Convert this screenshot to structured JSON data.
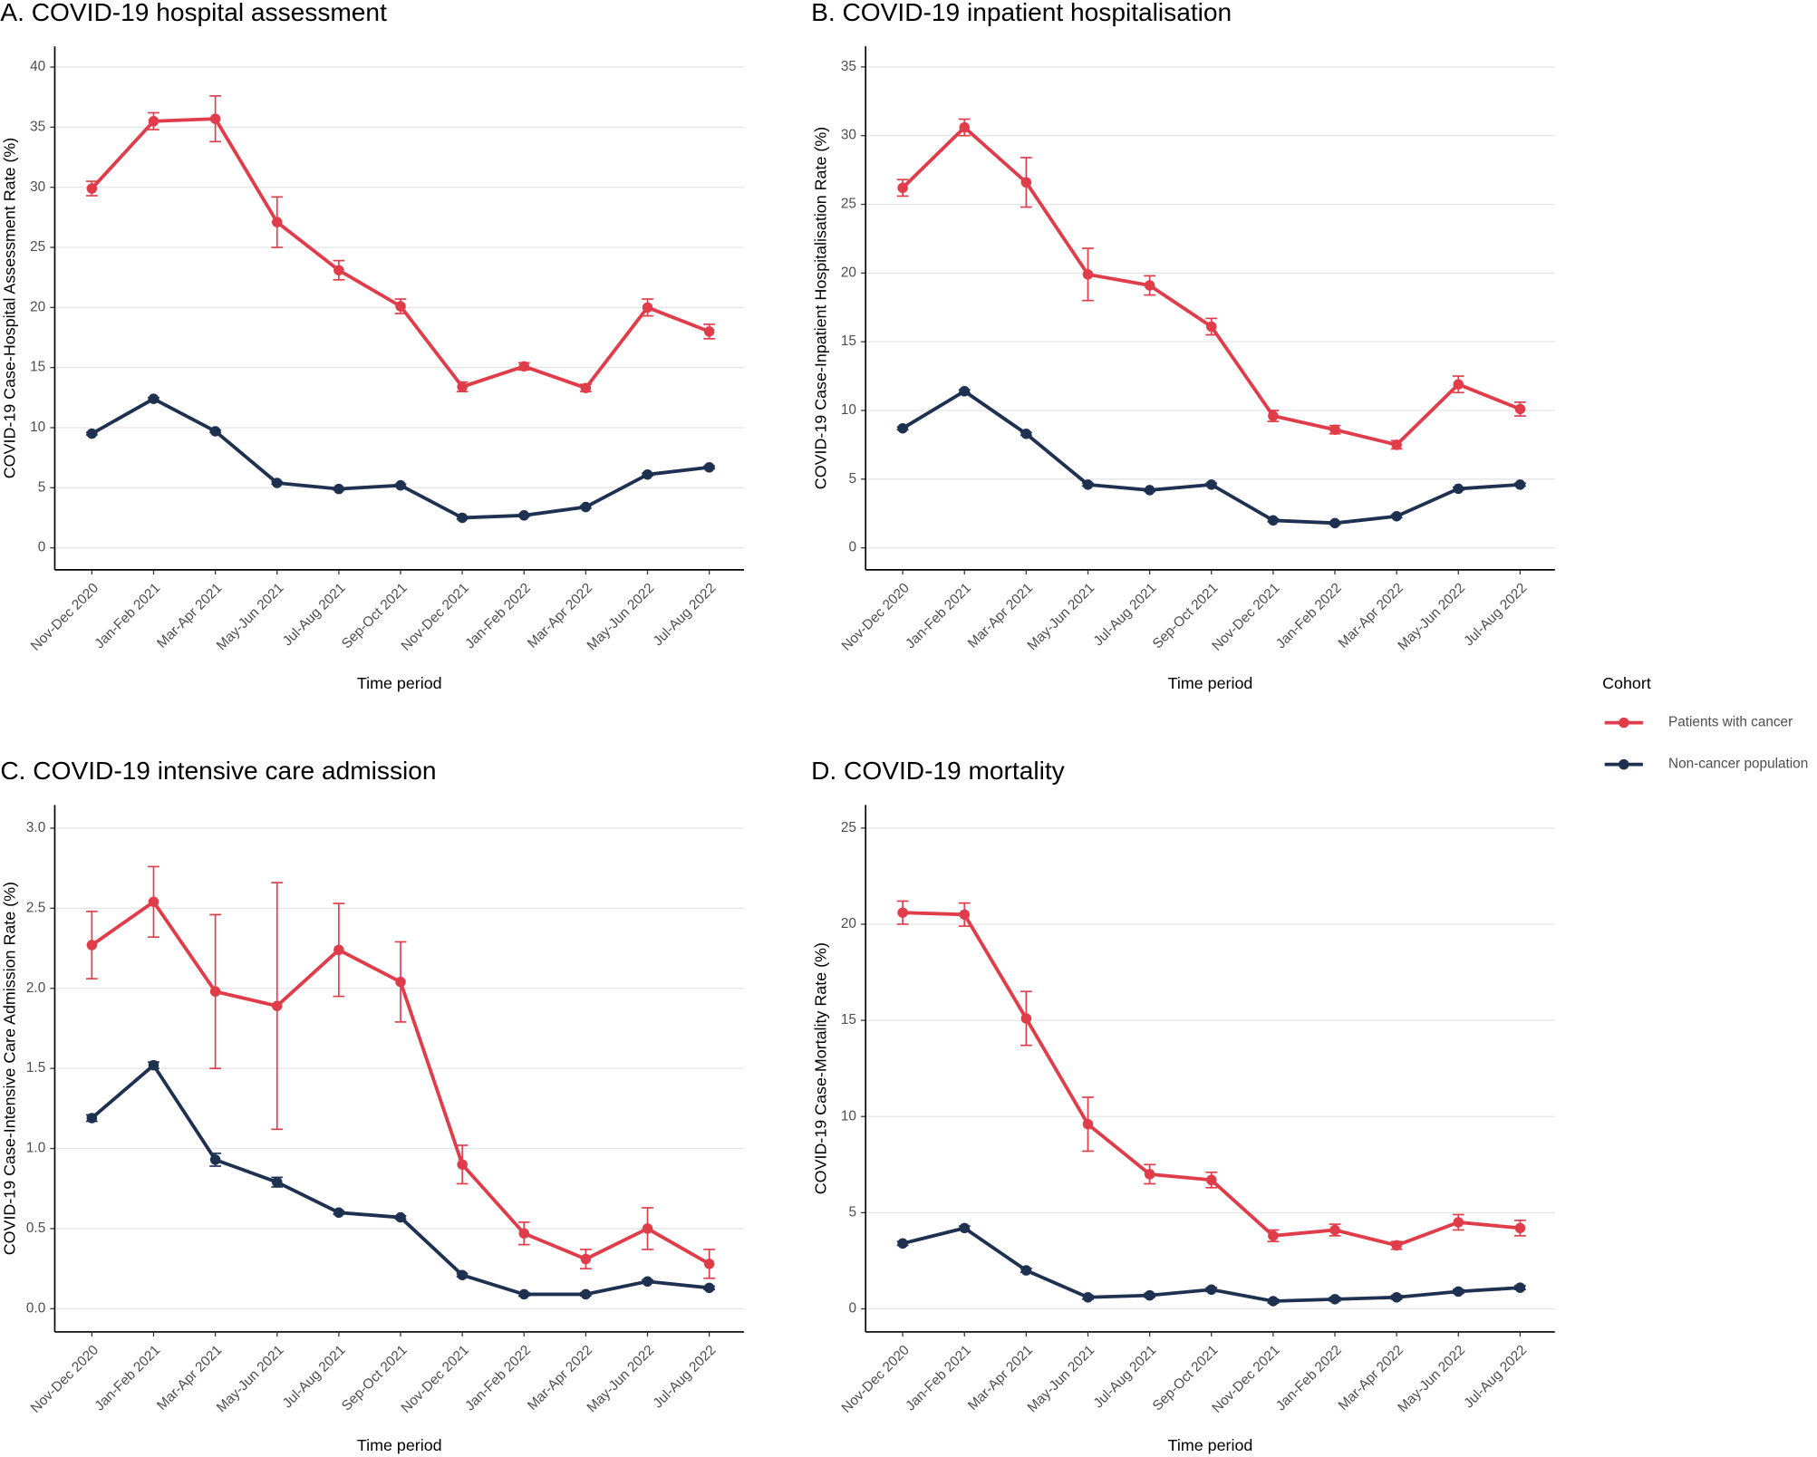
{
  "chart_data": [
    {
      "type": "line",
      "title": "A. COVID-19 hospital assessment",
      "x_label": "Time period",
      "y_label": "COVID-19 Case-Hospital Assessment Rate (%)",
      "categories": [
        "Nov-Dec 2020",
        "Jan-Feb 2021",
        "Mar-Apr 2021",
        "May-Jun 2021",
        "Jul-Aug 2021",
        "Sep-Oct 2021",
        "Nov-Dec 2021",
        "Jan-Feb 2022",
        "Mar-Apr 2022",
        "May-Jun 2022",
        "Jul-Aug 2022"
      ],
      "series": [
        {
          "name": "Patients with cancer",
          "color": "#e03c4a",
          "values": [
            29.9,
            35.5,
            35.7,
            27.1,
            23.1,
            20.1,
            13.4,
            15.1,
            13.3,
            20.0,
            18.0
          ],
          "errors": [
            0.6,
            0.7,
            1.9,
            2.1,
            0.8,
            0.6,
            0.4,
            0.3,
            0.3,
            0.7,
            0.6
          ]
        },
        {
          "name": "Non-cancer population",
          "color": "#1f3150",
          "values": [
            9.5,
            12.4,
            9.7,
            5.4,
            4.9,
            5.2,
            2.5,
            2.7,
            3.4,
            6.1,
            6.7
          ],
          "errors": [
            0.1,
            0.1,
            0.1,
            0.1,
            0.1,
            0.1,
            0.1,
            0.1,
            0.1,
            0.1,
            0.1
          ]
        }
      ],
      "ylim": [
        -1.83,
        41.73
      ],
      "yticks": [
        0,
        5,
        10,
        15,
        20,
        25,
        30,
        35,
        40
      ],
      "grid": true
    },
    {
      "type": "line",
      "title": "B. COVID-19 inpatient hospitalisation",
      "x_label": "Time period",
      "y_label": "COVID-19 Case-Inpatient Hospitalisation Rate (%)",
      "categories": [
        "Nov-Dec 2020",
        "Jan-Feb 2021",
        "Mar-Apr 2021",
        "May-Jun 2021",
        "Jul-Aug 2021",
        "Sep-Oct 2021",
        "Nov-Dec 2021",
        "Jan-Feb 2022",
        "Mar-Apr 2022",
        "May-Jun 2022",
        "Jul-Aug 2022"
      ],
      "series": [
        {
          "name": "Patients with cancer",
          "color": "#e03c4a",
          "values": [
            26.2,
            30.6,
            26.6,
            19.9,
            19.1,
            16.1,
            9.6,
            8.6,
            7.5,
            11.9,
            10.1
          ],
          "errors": [
            0.6,
            0.6,
            1.8,
            1.9,
            0.7,
            0.6,
            0.4,
            0.3,
            0.3,
            0.6,
            0.5
          ]
        },
        {
          "name": "Non-cancer population",
          "color": "#1f3150",
          "values": [
            8.7,
            11.4,
            8.3,
            4.6,
            4.2,
            4.6,
            2.0,
            1.8,
            2.3,
            4.3,
            4.6
          ],
          "errors": [
            0.1,
            0.1,
            0.1,
            0.1,
            0.1,
            0.1,
            0.1,
            0.1,
            0.1,
            0.1,
            0.1
          ]
        }
      ],
      "ylim": [
        -1.6,
        36.5
      ],
      "yticks": [
        0,
        5,
        10,
        15,
        20,
        25,
        30,
        35
      ],
      "grid": true
    },
    {
      "type": "line",
      "title": "C. COVID-19 intensive care admission",
      "x_label": "Time period",
      "y_label": "COVID-19 Case-Intensive Care Admission Rate (%)",
      "categories": [
        "Nov-Dec 2020",
        "Jan-Feb 2021",
        "Mar-Apr 2021",
        "May-Jun 2021",
        "Jul-Aug 2021",
        "Sep-Oct 2021",
        "Nov-Dec 2021",
        "Jan-Feb 2022",
        "Mar-Apr 2022",
        "May-Jun 2022",
        "Jul-Aug 2022"
      ],
      "series": [
        {
          "name": "Patients with cancer",
          "color": "#e03c4a",
          "values": [
            2.27,
            2.54,
            1.98,
            1.89,
            2.24,
            2.04,
            0.9,
            0.47,
            0.31,
            0.5,
            0.28
          ],
          "errors": [
            0.21,
            0.22,
            0.48,
            0.77,
            0.29,
            0.25,
            0.12,
            0.07,
            0.06,
            0.13,
            0.09
          ]
        },
        {
          "name": "Non-cancer population",
          "color": "#1f3150",
          "values": [
            1.19,
            1.52,
            0.93,
            0.79,
            0.6,
            0.57,
            0.21,
            0.09,
            0.09,
            0.17,
            0.13
          ],
          "errors": [
            0.02,
            0.02,
            0.04,
            0.03,
            0.01,
            0.01,
            0.01,
            0.01,
            0.01,
            0.01,
            0.01
          ]
        }
      ],
      "ylim": [
        -0.145,
        3.145
      ],
      "yticks": [
        {
          "value": 0,
          "label": "0.0"
        },
        {
          "value": 0.5,
          "label": "0.5"
        },
        {
          "value": 1,
          "label": "1.0"
        },
        {
          "value": 1.5,
          "label": "1.5"
        },
        {
          "value": 2,
          "label": "2.0"
        },
        {
          "value": 2.5,
          "label": "2.5"
        },
        {
          "value": 3,
          "label": "3.0"
        }
      ],
      "grid": true
    },
    {
      "type": "line",
      "title": "D. COVID-19 mortality",
      "x_label": "Time period",
      "y_label": "COVID-19 Case-Mortality Rate (%)",
      "categories": [
        "Nov-Dec 2020",
        "Jan-Feb 2021",
        "Mar-Apr 2021",
        "May-Jun 2021",
        "Jul-Aug 2021",
        "Sep-Oct 2021",
        "Nov-Dec 2021",
        "Jan-Feb 2022",
        "Mar-Apr 2022",
        "May-Jun 2022",
        "Jul-Aug 2022"
      ],
      "series": [
        {
          "name": "Patients with cancer",
          "color": "#e03c4a",
          "values": [
            20.6,
            20.5,
            15.1,
            9.6,
            7.0,
            6.7,
            3.8,
            4.1,
            3.3,
            4.5,
            4.2
          ],
          "errors": [
            0.6,
            0.6,
            1.4,
            1.4,
            0.5,
            0.4,
            0.3,
            0.3,
            0.2,
            0.4,
            0.4
          ]
        },
        {
          "name": "Non-cancer population",
          "color": "#1f3150",
          "values": [
            3.4,
            4.2,
            2.0,
            0.6,
            0.7,
            1.0,
            0.4,
            0.5,
            0.6,
            0.9,
            1.1
          ],
          "errors": [
            0.1,
            0.1,
            0.1,
            0.1,
            0.1,
            0.1,
            0.1,
            0.1,
            0.1,
            0.1,
            0.1
          ]
        }
      ],
      "ylim": [
        -1.2,
        26.2
      ],
      "yticks": [
        0,
        5,
        10,
        15,
        20,
        25
      ],
      "grid": true
    }
  ],
  "legend": {
    "title": "Cohort"
  }
}
